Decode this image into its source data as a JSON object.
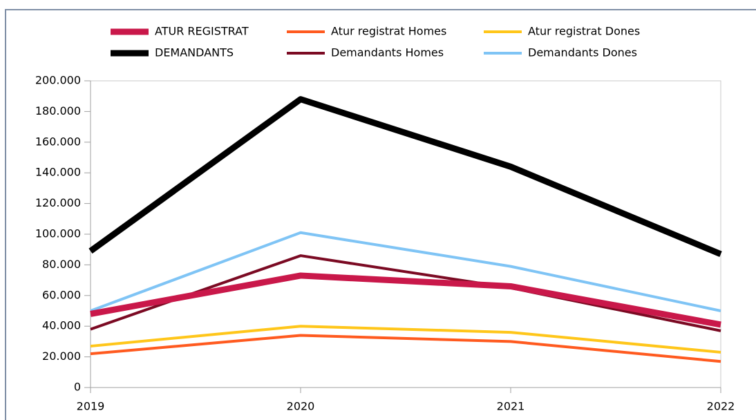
{
  "chart_data": {
    "type": "line",
    "categories": [
      "2019",
      "2020",
      "2021",
      "2022"
    ],
    "series": [
      {
        "name": "ATUR REGISTRAT",
        "color": "#c9184a",
        "values": [
          48000,
          73000,
          66000,
          41000
        ]
      },
      {
        "name": "Atur registrat Homes",
        "color": "#ff5a1f",
        "values": [
          22000,
          34000,
          30000,
          17000
        ]
      },
      {
        "name": "Atur registrat Dones",
        "color": "#ffc61a",
        "values": [
          27000,
          40000,
          36000,
          23000
        ]
      },
      {
        "name": "DEMANDANTS",
        "color": "#000000",
        "values": [
          89000,
          188000,
          144000,
          87000
        ]
      },
      {
        "name": "Demandants Homes",
        "color": "#7b0a23",
        "values": [
          38000,
          86000,
          65000,
          37000
        ]
      },
      {
        "name": "Demandants Dones",
        "color": "#7fc4f5",
        "values": [
          50000,
          101000,
          79000,
          50000
        ]
      }
    ],
    "ylim": [
      0,
      200000
    ],
    "yticks": [
      {
        "value": 0,
        "label": "0"
      },
      {
        "value": 20000,
        "label": "20.000"
      },
      {
        "value": 40000,
        "label": "40.000"
      },
      {
        "value": 60000,
        "label": "60.000"
      },
      {
        "value": 80000,
        "label": "80.000"
      },
      {
        "value": 100000,
        "label": "100.000"
      },
      {
        "value": 120000,
        "label": "120.000"
      },
      {
        "value": 140000,
        "label": "140.000"
      },
      {
        "value": 160000,
        "label": "160.000"
      },
      {
        "value": 180000,
        "label": "180.000"
      },
      {
        "value": 200000,
        "label": "200.000"
      }
    ],
    "grid": false
  }
}
